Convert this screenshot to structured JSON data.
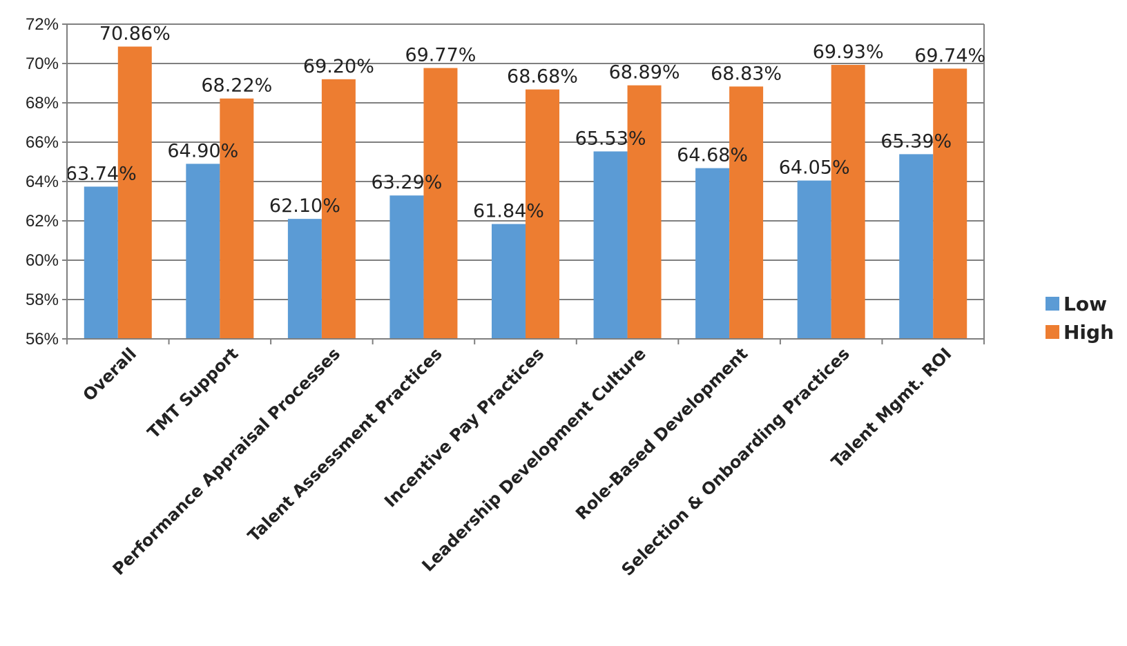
{
  "chart_data": {
    "type": "bar",
    "categories": [
      "Overall",
      "TMT Support",
      "Performance Appraisal Processes",
      "Talent Assessment Practices",
      "Incentive Pay Practices",
      "Leadership Development Culture",
      "Role-Based Development",
      "Selection & Onboarding Practices",
      "Talent Mgmt. ROI"
    ],
    "series": [
      {
        "name": "Low",
        "color": "#5b9bd5",
        "values": [
          63.74,
          64.9,
          62.1,
          63.29,
          61.84,
          65.53,
          64.68,
          64.05,
          65.39
        ],
        "labels": [
          "63.74%",
          "64.90%",
          "62.10%",
          "63.29%",
          "61.84%",
          "65.53%",
          "64.68%",
          "64.05%",
          "65.39%"
        ]
      },
      {
        "name": "High",
        "color": "#ed7d31",
        "values": [
          70.86,
          68.22,
          69.2,
          69.77,
          68.68,
          68.89,
          68.83,
          69.93,
          69.74
        ],
        "labels": [
          "70.86%",
          "68.22%",
          "69.20%",
          "69.77%",
          "68.68%",
          "68.89%",
          "68.83%",
          "69.93%",
          "69.74%"
        ]
      }
    ],
    "ylim": [
      56,
      72
    ],
    "yticks": [
      56,
      58,
      60,
      62,
      64,
      66,
      68,
      70,
      72
    ],
    "ytick_labels": [
      "56%",
      "58%",
      "60%",
      "62%",
      "64%",
      "66%",
      "68%",
      "70%",
      "72%"
    ],
    "title": "",
    "xlabel": "",
    "ylabel": "",
    "grid": true,
    "legend": "right"
  }
}
